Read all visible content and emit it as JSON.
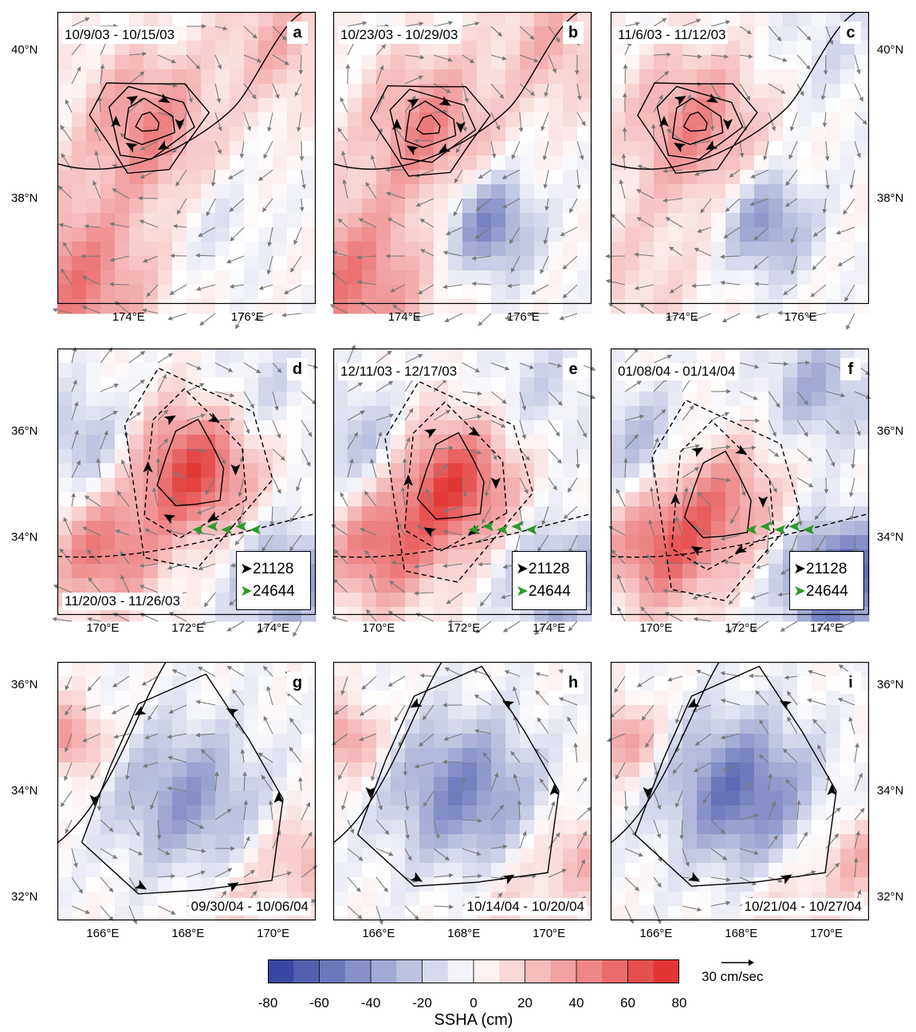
{
  "colors": {
    "blue_max": "#2a3b9c",
    "white": "#ffffff",
    "red_max": "#e02828",
    "vector": "#7a7a7a",
    "contour": "#000000",
    "float_black": "#000000",
    "float_green": "#2a9a2a"
  },
  "panels": [
    {
      "letter": "a",
      "date": "10/9/03 - 10/15/03",
      "date_pos": "top-left",
      "x_ticks": [
        "174°E",
        "176°E"
      ],
      "y_ticks_left": [
        "40°N",
        "38°N"
      ],
      "y_ticks_right": [],
      "legend": false
    },
    {
      "letter": "b",
      "date": "10/23/03 - 10/29/03",
      "date_pos": "top-left",
      "x_ticks": [
        "174°E",
        "176°E"
      ],
      "y_ticks_left": [],
      "y_ticks_right": [],
      "legend": false
    },
    {
      "letter": "c",
      "date": "11/6/03 - 11/12/03",
      "date_pos": "top-left",
      "x_ticks": [
        "174°E",
        "176°E"
      ],
      "y_ticks_left": [],
      "y_ticks_right": [
        "40°N",
        "38°N"
      ],
      "legend": false
    },
    {
      "letter": "d",
      "date": "11/20/03 - 11/26/03",
      "date_pos": "bottom-left",
      "x_ticks": [
        "170°E",
        "172°E",
        "174°E"
      ],
      "y_ticks_left": [
        "36°N",
        "34°N"
      ],
      "y_ticks_right": [],
      "legend": true
    },
    {
      "letter": "e",
      "date": "12/11/03 - 12/17/03",
      "date_pos": "top-left",
      "x_ticks": [
        "170°E",
        "172°E",
        "174°E"
      ],
      "y_ticks_left": [],
      "y_ticks_right": [],
      "legend": true
    },
    {
      "letter": "f",
      "date": "01/08/04 - 01/14/04",
      "date_pos": "top-left",
      "x_ticks": [
        "170°E",
        "172°E",
        "174°E"
      ],
      "y_ticks_left": [],
      "y_ticks_right": [
        "36°N",
        "34°N"
      ],
      "legend": true
    },
    {
      "letter": "g",
      "date": "09/30/04 - 10/06/04",
      "date_pos": "bottom-right",
      "x_ticks": [
        "166°E",
        "168°E",
        "170°E"
      ],
      "y_ticks_left": [
        "36°N",
        "34°N",
        "32°N"
      ],
      "y_ticks_right": [],
      "legend": false
    },
    {
      "letter": "h",
      "date": "10/14/04 - 10/20/04",
      "date_pos": "bottom-right",
      "x_ticks": [
        "166°E",
        "168°E",
        "170°E"
      ],
      "y_ticks_left": [],
      "y_ticks_right": [],
      "legend": false
    },
    {
      "letter": "i",
      "date": "10/21/04 - 10/27/04",
      "date_pos": "bottom-right",
      "x_ticks": [
        "166°E",
        "168°E",
        "170°E"
      ],
      "y_ticks_left": [],
      "y_ticks_right": [
        "36°N",
        "34°N",
        "32°N"
      ],
      "legend": false
    }
  ],
  "legend": {
    "float_1": "21128",
    "float_2": "24644"
  },
  "colorbar": {
    "title": "SSHA (cm)",
    "ticks": [
      "-80",
      "-60",
      "-40",
      "-20",
      "0",
      "20",
      "40",
      "60",
      "80"
    ],
    "min": -80,
    "max": 80
  },
  "scale": {
    "label": "30 cm/sec",
    "value": 30
  }
}
